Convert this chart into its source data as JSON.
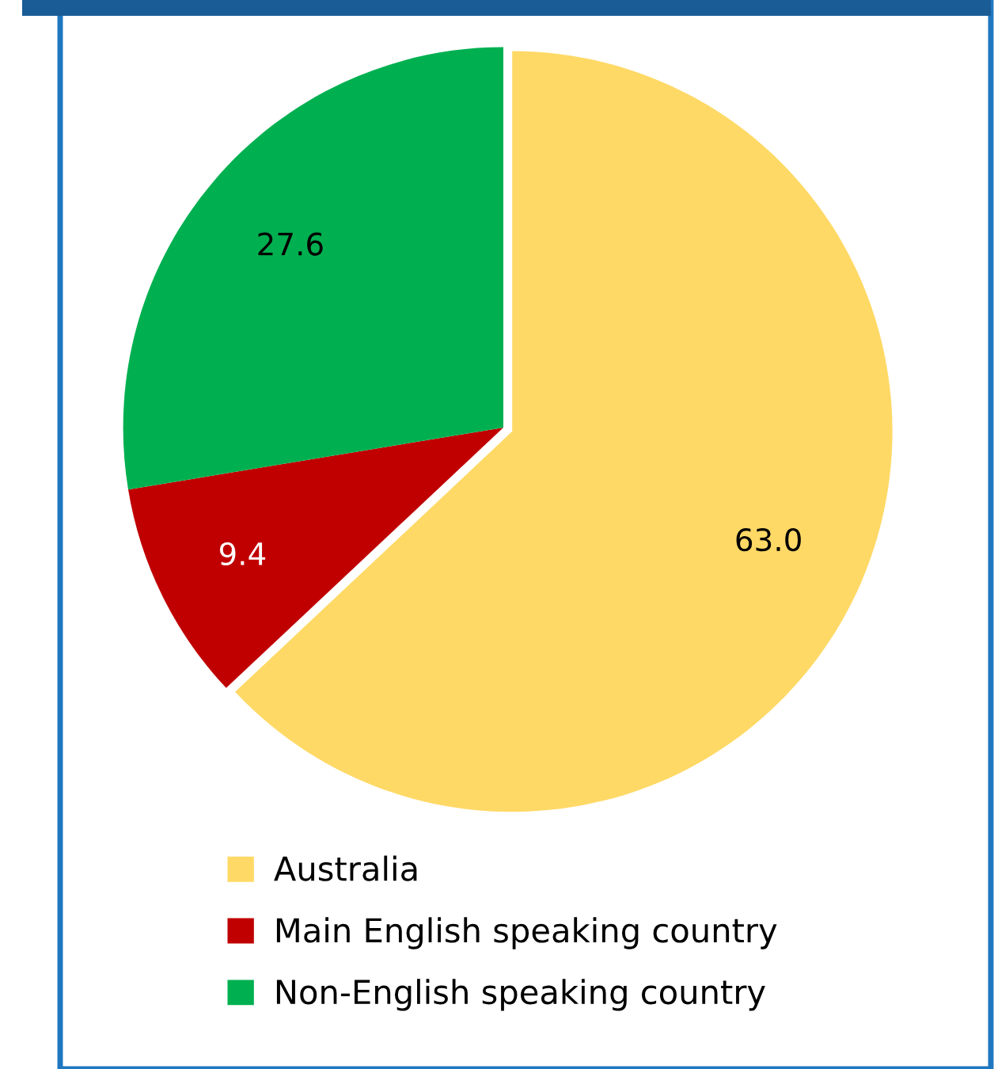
{
  "chart_data": {
    "type": "pie",
    "categories": [
      "Australia",
      "Main English speaking country",
      "Non-English speaking country"
    ],
    "values": [
      63.0,
      9.4,
      27.6
    ],
    "colors": [
      "#ffd966",
      "#c00000",
      "#00b050"
    ],
    "value_labels": [
      "63.0",
      "9.4",
      "27.6"
    ],
    "legend": "bottom"
  }
}
